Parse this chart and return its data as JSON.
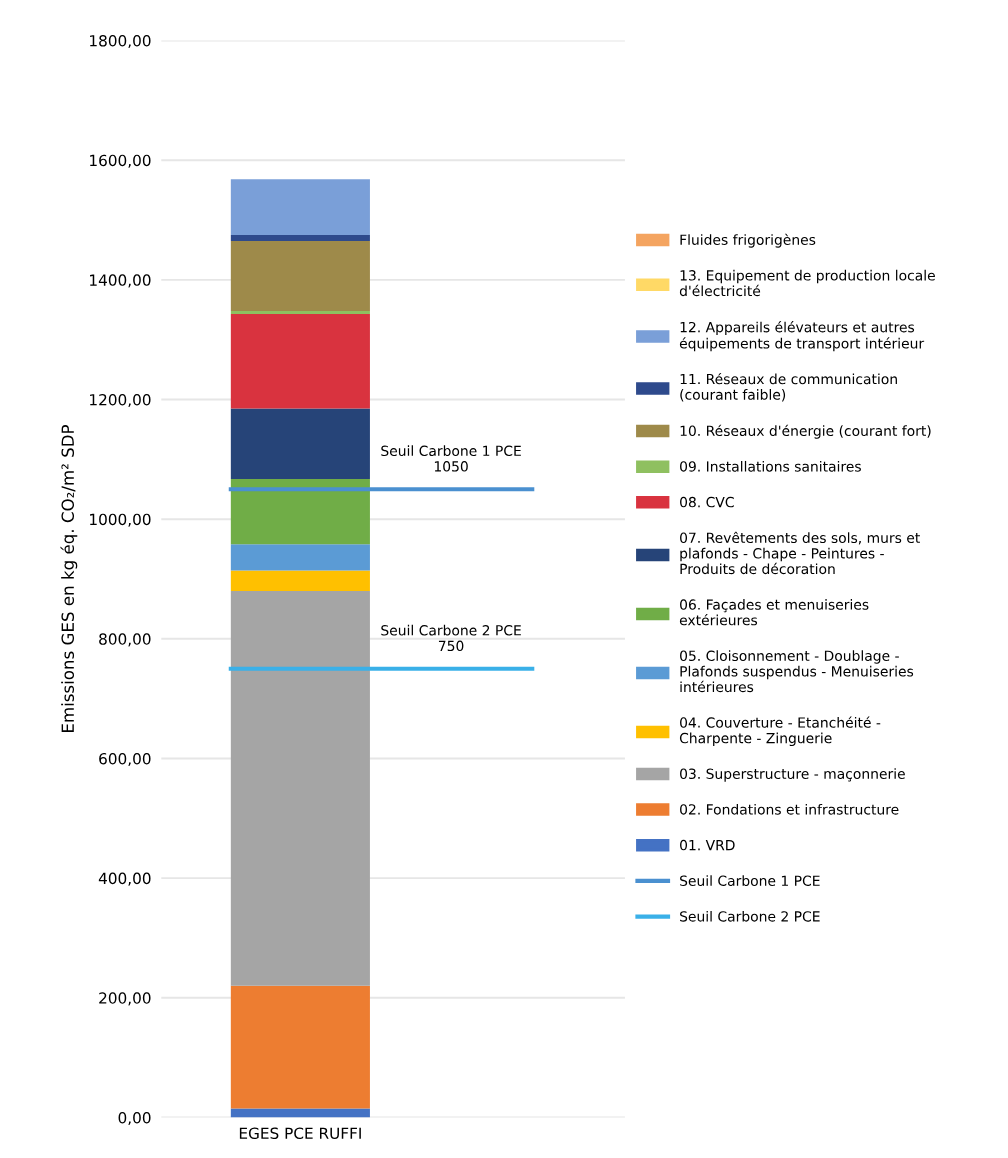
{
  "chart_data": {
    "type": "bar",
    "stacked": true,
    "categories": [
      "EGES PCE RUFFI"
    ],
    "ylabel": "Emissions GES en kg éq. CO₂/m² SDP",
    "ylim": [
      0,
      1800
    ],
    "yticks": [
      {
        "value": 0,
        "label": "0,00"
      },
      {
        "value": 200,
        "label": "200,00"
      },
      {
        "value": 400,
        "label": "400,00"
      },
      {
        "value": 600,
        "label": "600,00"
      },
      {
        "value": 800,
        "label": "800,00"
      },
      {
        "value": 1000,
        "label": "1000,00"
      },
      {
        "value": 1200,
        "label": "1200,00"
      },
      {
        "value": 1400,
        "label": "1400,00"
      },
      {
        "value": 1600,
        "label": "1600,00"
      },
      {
        "value": 1800,
        "label": "1800,00"
      }
    ],
    "grid": "y",
    "legend": "right",
    "series": [
      {
        "name": "01. VRD",
        "color": "#4472c4",
        "values": [
          15
        ]
      },
      {
        "name": "02. Fondations et infrastructure",
        "color": "#ed7d31",
        "values": [
          205
        ]
      },
      {
        "name": "03. Superstructure - maçonnerie",
        "color": "#a5a5a5",
        "values": [
          660
        ]
      },
      {
        "name": "04. Couverture - Etanchéité -\nCharpente - Zinguerie",
        "color": "#ffc000",
        "values": [
          34
        ]
      },
      {
        "name": "05. Cloisonnement - Doublage -\nPlafonds suspendus - Menuiseries\nintérieures",
        "color": "#5b9bd5",
        "values": [
          44
        ]
      },
      {
        "name": "06. Façades et menuiseries\nextérieures",
        "color": "#70ad47",
        "values": [
          109
        ]
      },
      {
        "name": "07. Revêtements des sols, murs et\nplafonds - Chape - Peintures -\nProduits de décoration",
        "color": "#264478",
        "values": [
          118
        ]
      },
      {
        "name": "08. CVC",
        "color": "#d9333f",
        "values": [
          158
        ]
      },
      {
        "name": "09. Installations sanitaires",
        "color": "#8fc060",
        "values": [
          5
        ]
      },
      {
        "name": "10. Réseaux d'énergie (courant fort)",
        "color": "#9e8a4a",
        "values": [
          117
        ]
      },
      {
        "name": "11. Réseaux de communication\n(courant faible)",
        "color": "#2e4a8c",
        "values": [
          10
        ]
      },
      {
        "name": "12. Appareils élévateurs et autres\néquipements de transport intérieur",
        "color": "#7a9fd8",
        "values": [
          93
        ]
      },
      {
        "name": "13. Equipement de production locale\nd'électricité",
        "color": "#ffd966",
        "values": [
          0
        ]
      },
      {
        "name": "Fluides frigorigènes",
        "color": "#f4a460",
        "values": [
          0
        ]
      }
    ],
    "ref_lines": [
      {
        "axis": "y",
        "value": 1050,
        "label": "Seuil Carbone 1 PCE",
        "color": "#4a90d0"
      },
      {
        "axis": "y",
        "value": 750,
        "label": "Seuil Carbone 2 PCE",
        "color": "#3ab0e8"
      }
    ],
    "annotations": [
      {
        "text": "Seuil Carbone 1 PCE\n1050",
        "y": 1050
      },
      {
        "text": "Seuil Carbone 2 PCE\n750",
        "y": 750
      }
    ]
  }
}
